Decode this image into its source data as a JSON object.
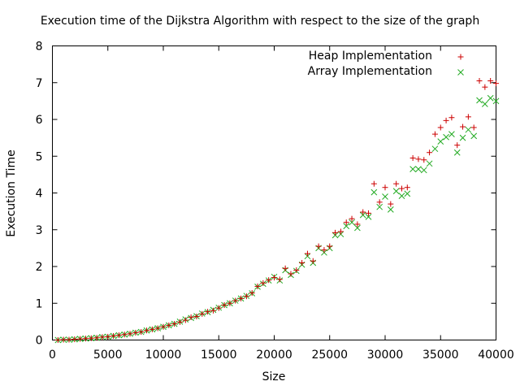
{
  "chart_data": {
    "type": "scatter",
    "title": "Execution time of the Dijkstra Algorithm with respect to the size of the graph",
    "xlabel": "Size",
    "ylabel": "Execution Time",
    "xlim": [
      0,
      40000
    ],
    "ylim": [
      0,
      8
    ],
    "xticks": [
      0,
      5000,
      10000,
      15000,
      20000,
      25000,
      30000,
      35000,
      40000
    ],
    "yticks": [
      0,
      1,
      2,
      3,
      4,
      5,
      6,
      7,
      8
    ],
    "grid": false,
    "legend_position": "top-right",
    "series": [
      {
        "name": "Heap Implementation",
        "marker": "+",
        "color": "#cc0000",
        "x": [
          500,
          1000,
          1500,
          2000,
          2500,
          3000,
          3500,
          4000,
          4500,
          5000,
          5500,
          6000,
          6500,
          7000,
          7500,
          8000,
          8500,
          9000,
          9500,
          10000,
          10500,
          11000,
          11500,
          12000,
          12500,
          13000,
          13500,
          14000,
          14500,
          15000,
          15500,
          16000,
          16500,
          17000,
          17500,
          18000,
          18500,
          19000,
          19500,
          20000,
          20500,
          21000,
          21500,
          22000,
          22500,
          23000,
          23500,
          24000,
          24500,
          25000,
          25500,
          26000,
          26500,
          27000,
          27500,
          28000,
          28500,
          29000,
          29500,
          30000,
          30500,
          31000,
          31500,
          32000,
          32500,
          33000,
          33500,
          34000,
          34500,
          35000,
          35500,
          36000,
          36500,
          37000,
          37500,
          38000,
          38500,
          39000,
          39500,
          40000
        ],
        "y": [
          0.0,
          0.01,
          0.01,
          0.02,
          0.03,
          0.04,
          0.05,
          0.06,
          0.08,
          0.09,
          0.11,
          0.13,
          0.15,
          0.17,
          0.2,
          0.22,
          0.26,
          0.29,
          0.32,
          0.36,
          0.4,
          0.44,
          0.49,
          0.54,
          0.62,
          0.64,
          0.71,
          0.77,
          0.8,
          0.87,
          0.95,
          1.0,
          1.07,
          1.13,
          1.19,
          1.28,
          1.46,
          1.55,
          1.63,
          1.7,
          1.65,
          1.95,
          1.8,
          1.9,
          2.1,
          2.35,
          2.15,
          2.55,
          2.45,
          2.55,
          2.92,
          2.95,
          3.2,
          3.3,
          3.15,
          3.48,
          3.45,
          4.25,
          3.75,
          4.15,
          3.7,
          4.25,
          4.12,
          4.15,
          4.95,
          4.92,
          4.9,
          5.1,
          5.6,
          5.78,
          5.97,
          6.05,
          5.3,
          5.8,
          6.07,
          5.78,
          7.05,
          6.88,
          7.05,
          6.98
        ]
      },
      {
        "name": "Array Implementation",
        "marker": "x",
        "color": "#22aa22",
        "x": [
          500,
          1000,
          1500,
          2000,
          2500,
          3000,
          3500,
          4000,
          4500,
          5000,
          5500,
          6000,
          6500,
          7000,
          7500,
          8000,
          8500,
          9000,
          9500,
          10000,
          10500,
          11000,
          11500,
          12000,
          12500,
          13000,
          13500,
          14000,
          14500,
          15000,
          15500,
          16000,
          16500,
          17000,
          17500,
          18000,
          18500,
          19000,
          19500,
          20000,
          20500,
          21000,
          21500,
          22000,
          22500,
          23000,
          23500,
          24000,
          24500,
          25000,
          25500,
          26000,
          26500,
          27000,
          27500,
          28000,
          28500,
          29000,
          29500,
          30000,
          30500,
          31000,
          31500,
          32000,
          32500,
          33000,
          33500,
          34000,
          34500,
          35000,
          35500,
          36000,
          36500,
          37000,
          37500,
          38000,
          38500,
          39000,
          39500,
          40000
        ],
        "y": [
          0.0,
          0.01,
          0.01,
          0.02,
          0.03,
          0.04,
          0.05,
          0.06,
          0.08,
          0.09,
          0.11,
          0.13,
          0.15,
          0.17,
          0.2,
          0.22,
          0.26,
          0.29,
          0.32,
          0.36,
          0.4,
          0.44,
          0.5,
          0.56,
          0.6,
          0.65,
          0.72,
          0.76,
          0.82,
          0.88,
          0.95,
          1.0,
          1.07,
          1.13,
          1.2,
          1.27,
          1.45,
          1.53,
          1.62,
          1.72,
          1.62,
          1.9,
          1.77,
          1.88,
          2.05,
          2.28,
          2.1,
          2.5,
          2.38,
          2.5,
          2.85,
          2.88,
          3.1,
          3.2,
          3.05,
          3.4,
          3.35,
          4.02,
          3.62,
          3.9,
          3.55,
          4.05,
          3.92,
          3.98,
          4.65,
          4.65,
          4.62,
          4.8,
          5.2,
          5.4,
          5.52,
          5.6,
          5.1,
          5.5,
          5.72,
          5.55,
          6.52,
          6.42,
          6.58,
          6.5
        ]
      }
    ]
  }
}
